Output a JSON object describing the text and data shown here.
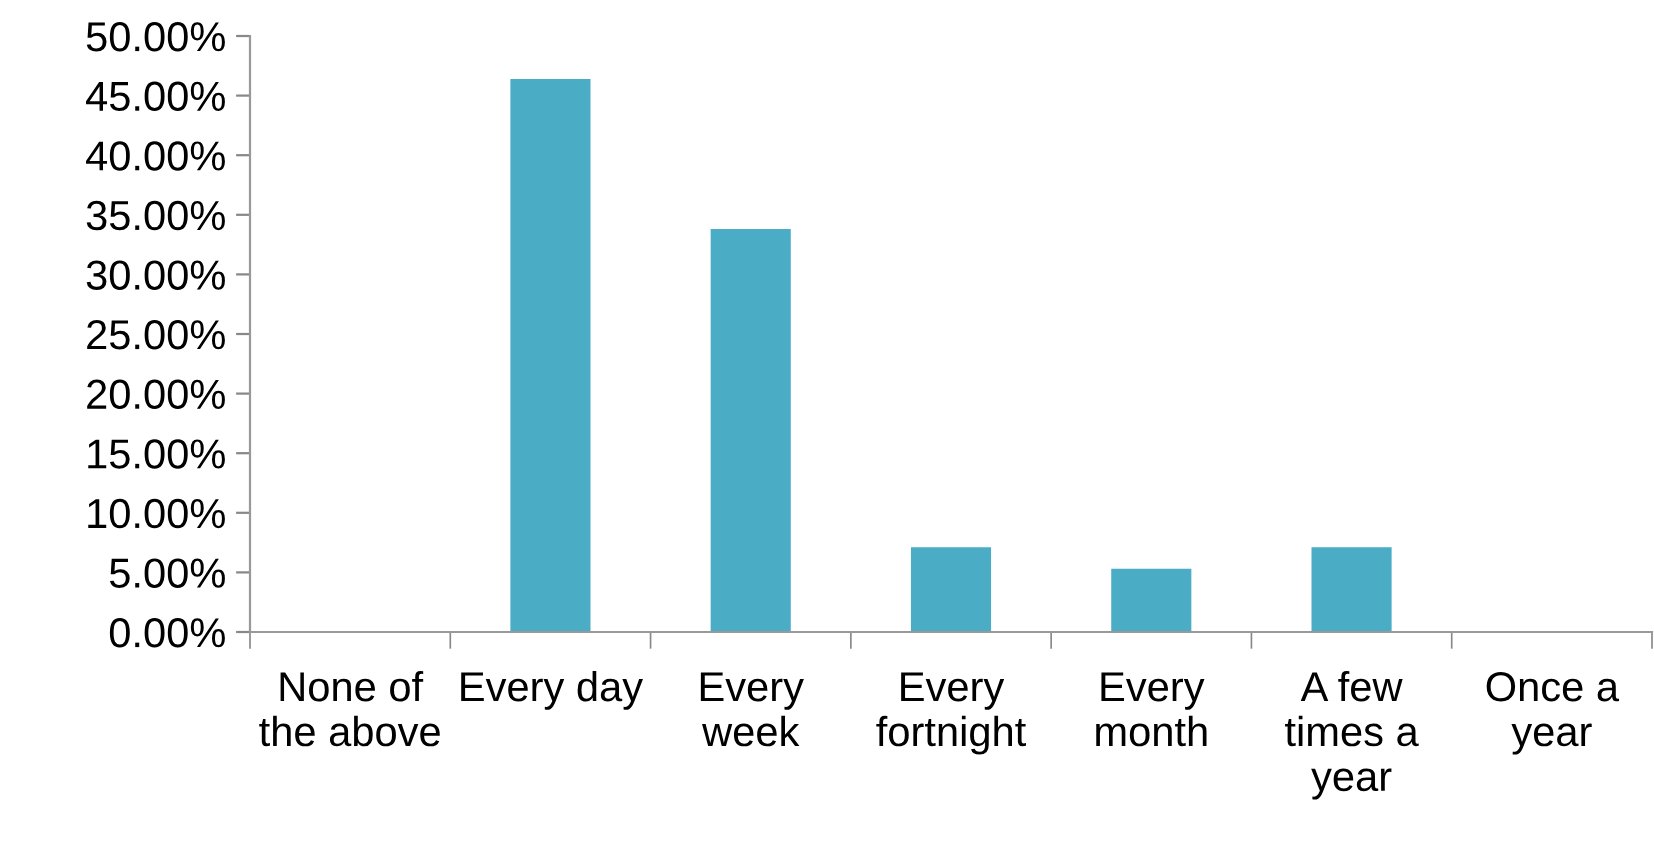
{
  "chart_data": {
    "type": "bar",
    "categories": [
      "None of the above",
      "Every day",
      "Every week",
      "Every fortnight",
      "Every month",
      "A few times a year",
      "Once a year"
    ],
    "values": [
      0,
      46.4,
      33.8,
      7.1,
      5.3,
      7.1,
      0
    ],
    "color": "#4bacc6",
    "ylim": [
      0,
      50
    ],
    "yticks": [
      {
        "value": 0,
        "label": "0.00%"
      },
      {
        "value": 5,
        "label": "5.00%"
      },
      {
        "value": 10,
        "label": "10.00%"
      },
      {
        "value": 15,
        "label": "15.00%"
      },
      {
        "value": 20,
        "label": "20.00%"
      },
      {
        "value": 25,
        "label": "25.00%"
      },
      {
        "value": 30,
        "label": "30.00%"
      },
      {
        "value": 35,
        "label": "35.00%"
      },
      {
        "value": 40,
        "label": "40.00%"
      },
      {
        "value": 45,
        "label": "45.00%"
      },
      {
        "value": 50,
        "label": "50.00%"
      }
    ],
    "grid": false,
    "legend": false
  }
}
